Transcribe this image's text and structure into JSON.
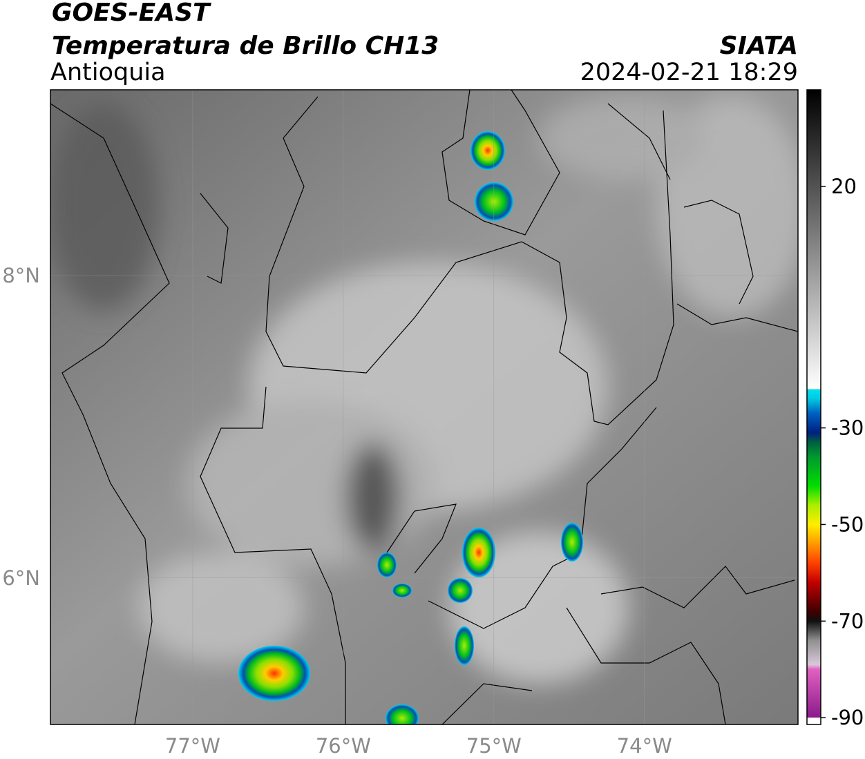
{
  "header": {
    "title": "GOES-EAST",
    "subtitle": "Temperatura de Brillo CH13",
    "region": "Antioquia",
    "source": "SIATA",
    "datetime": "2024-02-21 18:29"
  },
  "map": {
    "xlim": [
      -77.945,
      -72.98
    ],
    "ylim": [
      5.03,
      9.23
    ],
    "xticks": [
      {
        "value": -77,
        "label": "77°W"
      },
      {
        "value": -76,
        "label": "76°W"
      },
      {
        "value": -75,
        "label": "75°W"
      },
      {
        "value": -74,
        "label": "74°W"
      }
    ],
    "yticks": [
      {
        "value": 6,
        "label": "6°N"
      },
      {
        "value": 8,
        "label": "8°N"
      }
    ],
    "grid": true
  },
  "colorbar": {
    "lim": [
      -91.4,
      40
    ],
    "ticks": [
      20,
      -30,
      -50,
      -70,
      -90
    ],
    "colormap": [
      {
        "value": -91.4,
        "color": "#ffffff"
      },
      {
        "value": -90,
        "color": "#ffffff"
      },
      {
        "value": -90,
        "color": "#8a1a8a"
      },
      {
        "value": -80,
        "color": "#e060c0"
      },
      {
        "value": -79,
        "color": "#d8c8d8"
      },
      {
        "value": -74,
        "color": "#909090"
      },
      {
        "value": -70,
        "color": "#101010"
      },
      {
        "value": -68,
        "color": "#400000"
      },
      {
        "value": -62,
        "color": "#c00000"
      },
      {
        "value": -58,
        "color": "#ff4000"
      },
      {
        "value": -54,
        "color": "#ff9900"
      },
      {
        "value": -50,
        "color": "#ffee00"
      },
      {
        "value": -46,
        "color": "#aaee00"
      },
      {
        "value": -42,
        "color": "#00dd00"
      },
      {
        "value": -36,
        "color": "#009930"
      },
      {
        "value": -33,
        "color": "#006040"
      },
      {
        "value": -31,
        "color": "#002080"
      },
      {
        "value": -27,
        "color": "#0060c0"
      },
      {
        "value": -24,
        "color": "#00c8e0"
      },
      {
        "value": -22,
        "color": "#00e0f0"
      },
      {
        "value": -22,
        "color": "#ffffff"
      },
      {
        "value": 40,
        "color": "#000000"
      }
    ]
  }
}
